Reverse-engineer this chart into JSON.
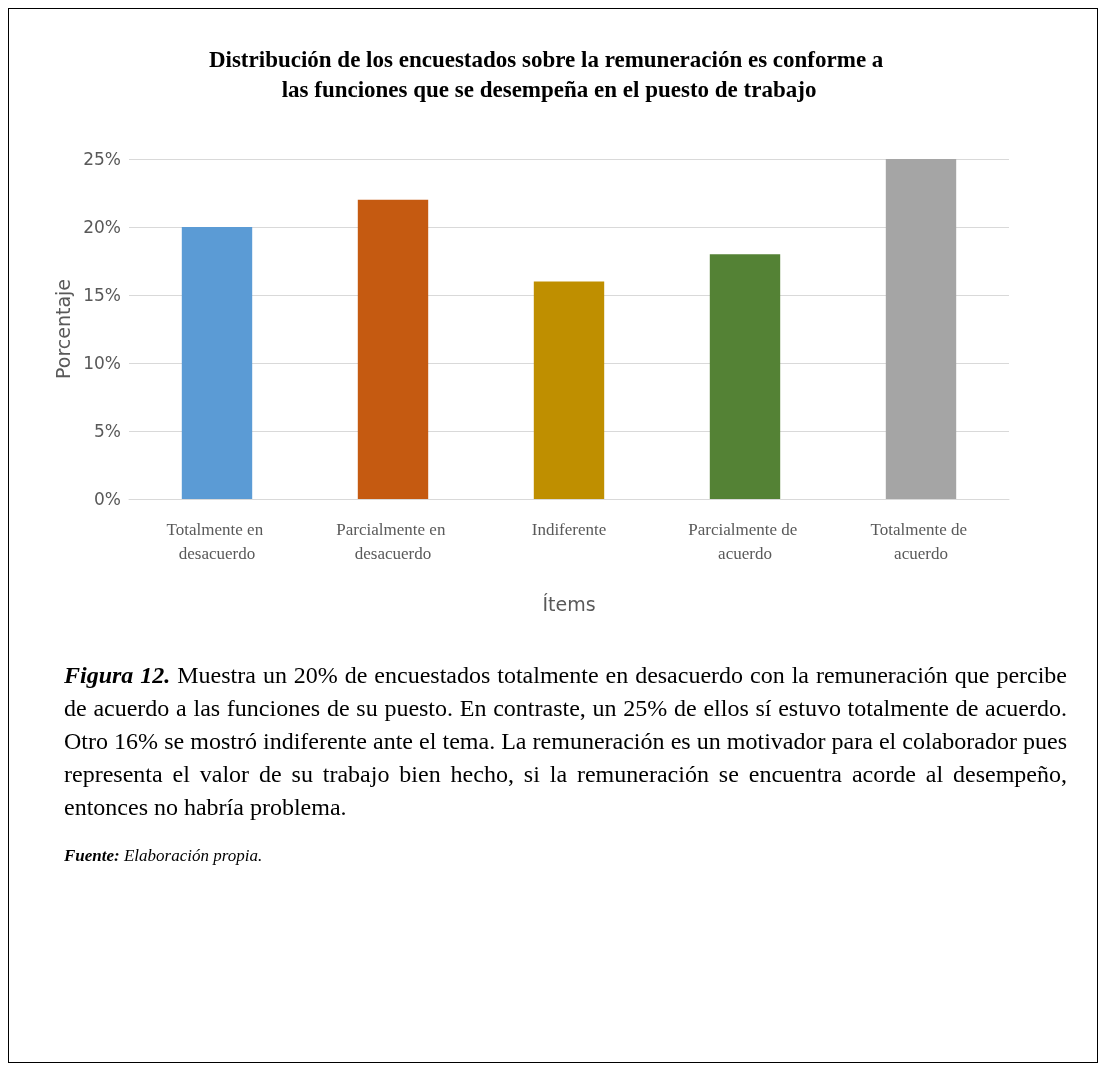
{
  "chart_data": {
    "type": "bar",
    "title": "Distribución de los encuestados sobre la remuneración es conforme a las funciones que se desempeña en el puesto de trabajo",
    "categories": [
      "Totalmente en desacuerdo",
      "Parcialmente en desacuerdo",
      "Indiferente",
      "Parcialmente de acuerdo",
      "Totalmente de acuerdo"
    ],
    "values": [
      20,
      22,
      16,
      18,
      25
    ],
    "colors": [
      "#5b9bd5",
      "#c55a11",
      "#bf8f00",
      "#548235",
      "#a5a5a5"
    ],
    "xlabel": "Ítems",
    "ylabel": "Porcentaje",
    "ylim": [
      0,
      25
    ],
    "yticks": [
      {
        "value": 0,
        "label": "0%"
      },
      {
        "value": 5,
        "label": "5%"
      },
      {
        "value": 10,
        "label": "10%"
      },
      {
        "value": 15,
        "label": "15%"
      },
      {
        "value": 20,
        "label": "20%"
      },
      {
        "value": 25,
        "label": "25%"
      }
    ],
    "grid": "y",
    "annotations": [
      "Figura 12.",
      "Muestra un 20% de encuestados totalmente en desacuerdo con la remuneración que percibe de acuerdo a las funciones de su puesto. En contraste, un 25% de ellos sí estuvo totalmente de acuerdo. Otro 16% se mostró indiferente ante el tema. La remuneración es un motivador para el colaborador pues representa el valor de su trabajo bien hecho, si la remuneración se encuentra acorde al desempeño, entonces no habría problema.",
      "Fuente:",
      "Elaboración propia."
    ]
  }
}
